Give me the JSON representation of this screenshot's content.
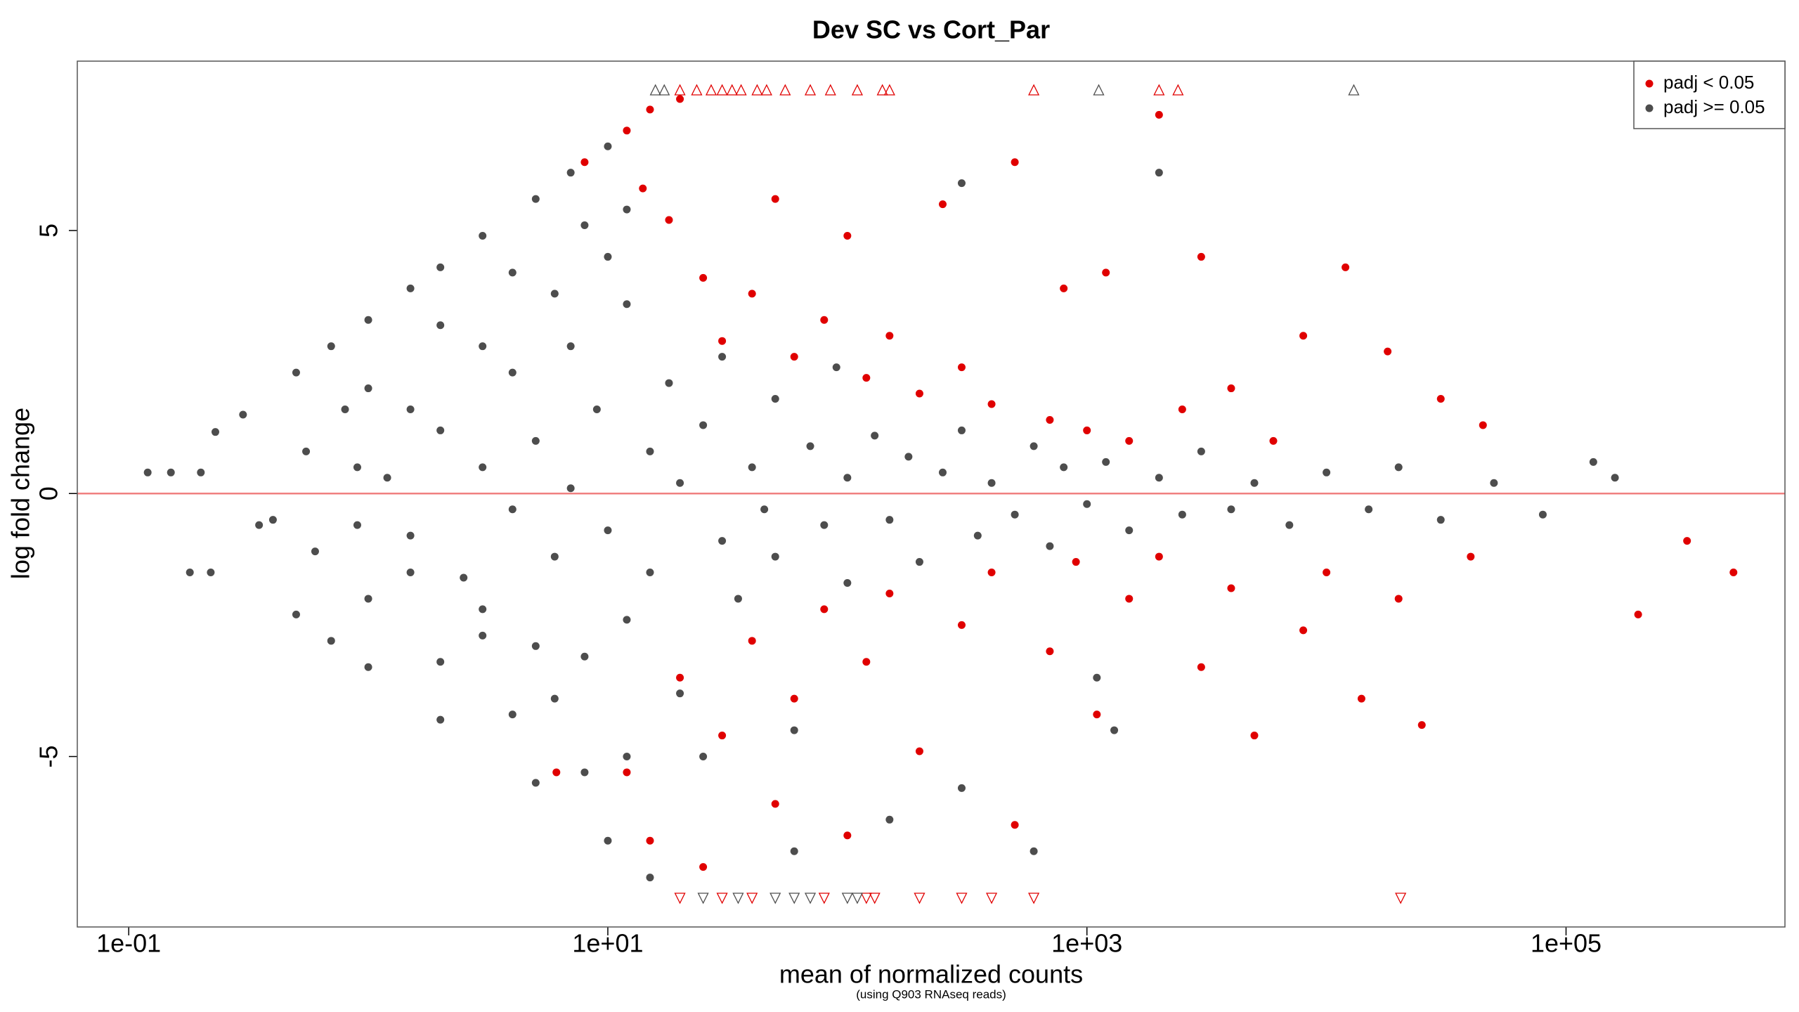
{
  "chart_data": {
    "type": "scatter",
    "title": "Dev SC vs Cort_Par",
    "x_label": "mean of normalized counts",
    "x_sublabel": "(using Q903 RNAseq reads)",
    "y_label": "log fold change",
    "x_log": true,
    "xlim": [
      0.061,
      820000
    ],
    "ylim": [
      -8.24,
      8.22
    ],
    "xticks": [
      {
        "value": 0.1,
        "label": "1e-01"
      },
      {
        "value": 10,
        "label": "1e+01"
      },
      {
        "value": 1000,
        "label": "1e+03"
      },
      {
        "value": 100000,
        "label": "1e+05"
      }
    ],
    "yticks": [
      -5,
      0,
      5
    ],
    "grid": false,
    "hline": 0,
    "hline_color": "#f08080",
    "legend": "topright",
    "series": [
      {
        "name": "padj >= 0.05",
        "color": "#4d4d4d",
        "x": [
          0.23,
          0.3,
          0.5,
          0.7,
          1,
          1.5,
          2,
          3,
          5,
          7,
          10,
          0.55,
          0.8,
          1,
          2,
          4,
          8,
          12,
          0.9,
          1.5,
          3,
          6,
          10,
          0.5,
          0.7,
          1,
          2,
          5,
          10,
          15,
          0.6,
          1,
          2,
          4,
          8,
          0.9,
          1.5,
          3,
          6,
          12,
          0.12,
          0.15,
          0.2,
          0.18,
          0.22,
          0.35,
          0.4,
          1.2,
          1.5,
          2,
          2.5,
          3,
          3,
          4,
          4,
          5,
          5,
          6,
          7,
          7,
          8,
          9,
          10,
          12,
          12,
          15,
          15,
          18,
          20,
          20,
          25,
          30,
          30,
          35,
          40,
          45,
          50,
          50,
          60,
          70,
          80,
          90,
          100,
          100,
          130,
          150,
          180,
          200,
          250,
          300,
          350,
          400,
          500,
          600,
          700,
          800,
          1000,
          1200,
          1500,
          2000,
          2500,
          3000,
          4000,
          5000,
          7000,
          10000,
          15000,
          20000,
          30000,
          50000,
          80000,
          130000,
          160000,
          25,
          60,
          150,
          300,
          1100,
          1300,
          2000,
          300,
          600
        ],
        "values": [
          1.17,
          1.5,
          2.3,
          2.8,
          3.3,
          3.9,
          4.3,
          4.9,
          5.6,
          6.1,
          6.6,
          0.8,
          1.6,
          2.0,
          3.2,
          4.2,
          5.1,
          5.4,
          0.5,
          1.6,
          2.8,
          3.8,
          4.5,
          -2.3,
          -2.8,
          -3.3,
          -4.3,
          -5.5,
          -6.6,
          -7.3,
          -1.1,
          -2.0,
          -3.2,
          -4.2,
          -5.3,
          -0.6,
          -1.5,
          -2.7,
          -3.9,
          -5,
          0.4,
          0.4,
          0.4,
          -1.5,
          -1.5,
          -0.6,
          -0.5,
          0.3,
          -0.8,
          1.2,
          -1.6,
          0.5,
          -2.2,
          2.3,
          -0.3,
          1.0,
          -2.9,
          -1.2,
          2.8,
          0.1,
          -3.1,
          1.6,
          -0.7,
          3.6,
          -2.4,
          0.8,
          -1.5,
          2.1,
          -3.8,
          0.2,
          1.3,
          -0.9,
          2.6,
          -2.0,
          0.5,
          -0.3,
          1.8,
          -1.2,
          -4.5,
          0.9,
          -0.6,
          2.4,
          0.3,
          -1.7,
          1.1,
          -0.5,
          0.7,
          -1.3,
          0.4,
          1.2,
          -0.8,
          0.2,
          -0.4,
          0.9,
          -1.0,
          0.5,
          -0.2,
          0.6,
          -0.7,
          0.3,
          -0.4,
          0.8,
          -0.3,
          0.2,
          -0.6,
          0.4,
          -0.3,
          0.5,
          -0.5,
          0.2,
          -0.4,
          0.6,
          0.3,
          -5.0,
          -6.8,
          -6.2,
          -5.6,
          -3.5,
          -4.5,
          6.1,
          5.9,
          -6.8
        ]
      },
      {
        "name": "padj < 0.05",
        "color": "#e00000",
        "x": [
          8,
          12,
          15,
          20,
          14,
          18,
          25,
          30,
          40,
          50,
          60,
          80,
          100,
          120,
          150,
          200,
          250,
          300,
          400,
          500,
          700,
          800,
          1000,
          1200,
          1500,
          2000,
          2500,
          3000,
          4000,
          6000,
          8000,
          12000,
          18000,
          30000,
          45000,
          12,
          15,
          20,
          25,
          30,
          40,
          50,
          60,
          80,
          100,
          120,
          150,
          200,
          300,
          400,
          500,
          700,
          900,
          1100,
          1500,
          2000,
          3000,
          4000,
          5000,
          8000,
          10000,
          14000,
          20000,
          25000,
          40000,
          200000,
          320000,
          500000,
          6.1
        ],
        "values": [
          6.3,
          6.9,
          7.3,
          7.5,
          5.8,
          5.2,
          4.1,
          2.9,
          3.8,
          5.6,
          2.6,
          3.3,
          4.9,
          2.2,
          3.0,
          1.9,
          5.5,
          2.4,
          1.7,
          6.3,
          1.4,
          3.9,
          1.2,
          4.2,
          1.0,
          7.2,
          1.6,
          4.5,
          2.0,
          1.0,
          3.0,
          4.3,
          2.7,
          1.8,
          1.3,
          -5.3,
          -6.6,
          -3.5,
          -7.1,
          -4.6,
          -2.8,
          -5.9,
          -3.9,
          -2.2,
          -6.5,
          -3.2,
          -1.9,
          -4.9,
          -2.5,
          -1.5,
          -6.3,
          -3.0,
          -1.3,
          -4.2,
          -2.0,
          -1.2,
          -3.3,
          -1.8,
          -4.6,
          -2.6,
          -1.5,
          -3.9,
          -2.0,
          -4.4,
          -1.2,
          -2.3,
          -0.9,
          -1.5,
          -5.3
        ]
      }
    ],
    "outliers": [
      {
        "direction": "up",
        "color": "#e00000",
        "x": [
          20,
          23.5,
          27,
          30,
          33,
          36,
          42,
          46,
          55,
          70,
          85,
          110,
          140,
          150,
          600,
          2000,
          2400
        ]
      },
      {
        "direction": "up",
        "color": "#4d4d4d",
        "x": [
          15.8,
          17.2,
          1120,
          13000
        ]
      },
      {
        "direction": "down",
        "color": "#e00000",
        "x": [
          20,
          30,
          40,
          80,
          120,
          130,
          200,
          300,
          400,
          600,
          20400
        ]
      },
      {
        "direction": "down",
        "color": "#4d4d4d",
        "x": [
          25,
          35,
          50,
          60,
          70,
          100,
          110
        ]
      }
    ]
  }
}
